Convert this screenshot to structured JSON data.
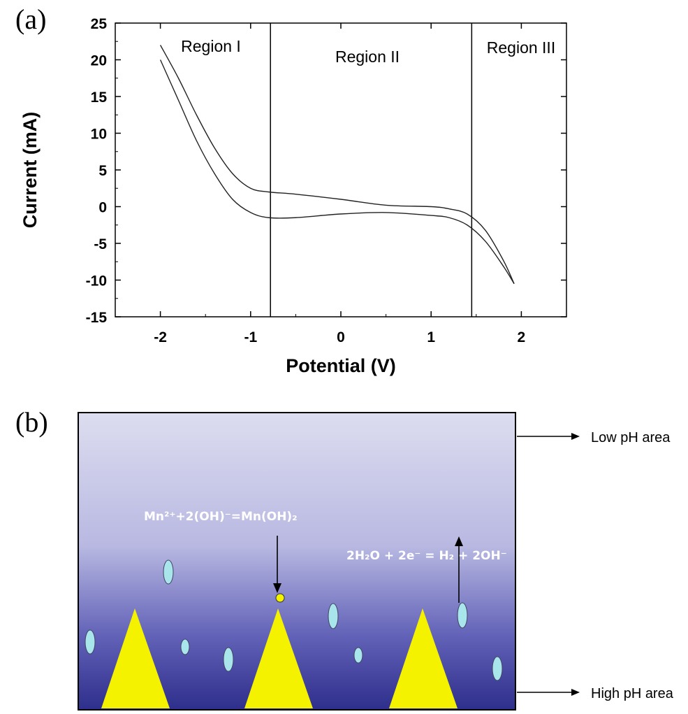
{
  "panel_a_label": "(a)",
  "panel_b_label": "(b)",
  "chart_data": {
    "type": "line",
    "xlabel": "Potential (V)",
    "ylabel": "Current (mA)",
    "xlim": [
      -2.5,
      2.5
    ],
    "ylim": [
      -15,
      25
    ],
    "xticks": [
      "-2",
      "-1",
      "0",
      "1",
      "2"
    ],
    "xtick_values": [
      -2,
      -1,
      0,
      1,
      2
    ],
    "yticks": [
      "25",
      "20",
      "15",
      "10",
      "5",
      "0",
      "-5",
      "-10",
      "-15"
    ],
    "ytick_values": [
      25,
      20,
      15,
      10,
      5,
      0,
      -5,
      -10,
      -15
    ],
    "grid": false,
    "region_boundaries": [
      -0.78,
      1.45
    ],
    "regions": [
      "Region I",
      "Region II",
      "Region III"
    ],
    "series": [
      {
        "x": [
          -2.0,
          -1.8,
          -1.6,
          -1.4,
          -1.2,
          -1.0,
          -0.8,
          -0.5,
          0.0,
          0.5,
          1.0,
          1.2,
          1.4,
          1.6,
          1.8,
          1.92
        ],
        "values": [
          22.0,
          17.5,
          12.5,
          8.0,
          4.5,
          2.5,
          2.0,
          1.7,
          1.0,
          0.2,
          0.0,
          -0.3,
          -1.0,
          -3.2,
          -7.3,
          -10.5
        ]
      },
      {
        "x": [
          -2.0,
          -1.8,
          -1.6,
          -1.4,
          -1.2,
          -1.0,
          -0.8,
          -0.5,
          0.0,
          0.5,
          1.0,
          1.2,
          1.4,
          1.6,
          1.8,
          1.92
        ],
        "values": [
          20.0,
          14.5,
          9.0,
          4.5,
          1.0,
          -0.8,
          -1.5,
          -1.5,
          -1.0,
          -0.8,
          -1.2,
          -1.5,
          -2.5,
          -4.7,
          -8.1,
          -10.5
        ]
      }
    ]
  },
  "diagram": {
    "equation_left": "Mn²⁺+2(OH)⁻=Mn(OH)₂",
    "equation_right": "2H₂O + 2e⁻ = H₂ + 2OH⁻",
    "low_ph_label": "Low pH area",
    "high_ph_label": "High pH area",
    "colors": {
      "top": "#ddddf0",
      "bottom": "#2e2e8c",
      "pyramid": "#f5f200",
      "bubble": "#a8e6ec",
      "dot": "#f5f200"
    }
  }
}
